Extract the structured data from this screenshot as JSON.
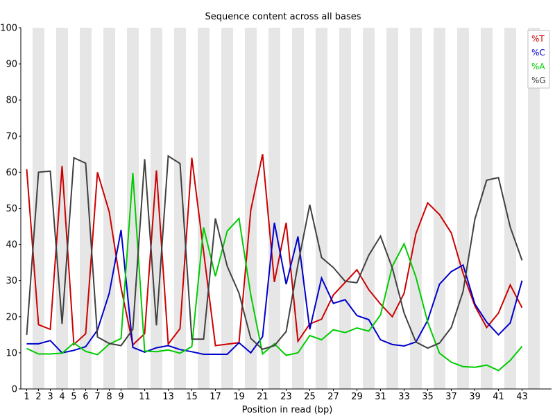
{
  "chart_data": {
    "type": "line",
    "title": "Sequence content across all bases",
    "xlabel": "Position in read (bp)",
    "ylabel": "",
    "ylim": [
      0,
      100
    ],
    "yticks": [
      "0",
      "10",
      "20",
      "30",
      "40",
      "50",
      "60",
      "70",
      "80",
      "90",
      "100"
    ],
    "x": [
      1,
      2,
      3,
      4,
      5,
      6,
      7,
      8,
      9,
      10,
      11,
      12,
      13,
      14,
      15,
      16,
      17,
      18,
      19,
      20,
      21,
      22,
      23,
      24,
      25,
      26,
      27,
      28,
      29,
      30,
      31,
      32,
      33,
      34,
      35,
      36,
      37,
      38,
      39,
      40,
      41,
      42,
      43
    ],
    "xticks": [
      "1",
      "2",
      "3",
      "4",
      "5",
      "6",
      "7",
      "8",
      "9",
      "11",
      "13",
      "15",
      "17",
      "19",
      "21",
      "23",
      "25",
      "27",
      "29",
      "31",
      "33",
      "35",
      "37",
      "39",
      "41",
      "43"
    ],
    "grid": "alternating vertical bands",
    "legend_position": "top-right",
    "series": [
      {
        "name": "%T",
        "color": "#cc0000",
        "values": [
          60.8,
          17.8,
          16.5,
          61.7,
          12.3,
          15.3,
          60.0,
          49.0,
          28.0,
          12.2,
          15.3,
          60.5,
          12.4,
          16.7,
          64.0,
          38.0,
          12.0,
          12.4,
          12.8,
          49.5,
          65.0,
          29.6,
          46.0,
          13.2,
          18.0,
          19.3,
          26.0,
          29.5,
          33.0,
          27.5,
          23.5,
          20.0,
          26.5,
          43.0,
          51.5,
          48.3,
          43.2,
          32.0,
          23.0,
          17.0,
          21.0,
          28.8,
          22.5
        ]
      },
      {
        "name": "%C",
        "color": "#0000cc",
        "values": [
          12.5,
          12.5,
          13.4,
          10.0,
          10.7,
          11.7,
          16.3,
          26.5,
          44.0,
          11.5,
          10.2,
          11.4,
          12.0,
          10.9,
          10.3,
          9.6,
          9.6,
          9.6,
          12.8,
          10.0,
          14.5,
          46.0,
          29.0,
          42.2,
          16.5,
          30.7,
          23.7,
          24.7,
          20.3,
          19.2,
          13.6,
          12.3,
          11.9,
          13.0,
          19.0,
          29.0,
          32.5,
          34.3,
          23.5,
          18.5,
          15.0,
          18.3,
          30.0
        ]
      },
      {
        "name": "%A",
        "color": "#00cc00",
        "values": [
          11.2,
          9.7,
          9.7,
          9.9,
          12.7,
          10.4,
          9.5,
          12.4,
          14.0,
          59.8,
          10.5,
          10.3,
          10.8,
          9.9,
          11.7,
          44.7,
          31.2,
          43.7,
          47.2,
          26.0,
          9.7,
          12.5,
          9.3,
          10.0,
          14.8,
          13.6,
          16.4,
          15.6,
          16.9,
          16.0,
          20.5,
          34.0,
          40.2,
          31.0,
          18.5,
          9.9,
          7.4,
          6.2,
          6.0,
          6.6,
          5.1,
          7.9,
          11.8
        ]
      },
      {
        "name": "%G",
        "color": "#404040",
        "values": [
          15.0,
          60.0,
          60.3,
          18.0,
          64.0,
          62.5,
          14.4,
          12.6,
          12.0,
          16.5,
          63.6,
          17.6,
          64.5,
          62.4,
          13.8,
          13.8,
          47.2,
          34.0,
          26.5,
          14.0,
          11.0,
          12.0,
          15.9,
          34.5,
          51.0,
          36.4,
          33.6,
          29.8,
          29.4,
          37.0,
          42.3,
          33.5,
          21.0,
          13.0,
          11.3,
          12.7,
          17.0,
          27.0,
          47.0,
          57.8,
          58.5,
          44.8,
          35.6
        ]
      }
    ]
  }
}
